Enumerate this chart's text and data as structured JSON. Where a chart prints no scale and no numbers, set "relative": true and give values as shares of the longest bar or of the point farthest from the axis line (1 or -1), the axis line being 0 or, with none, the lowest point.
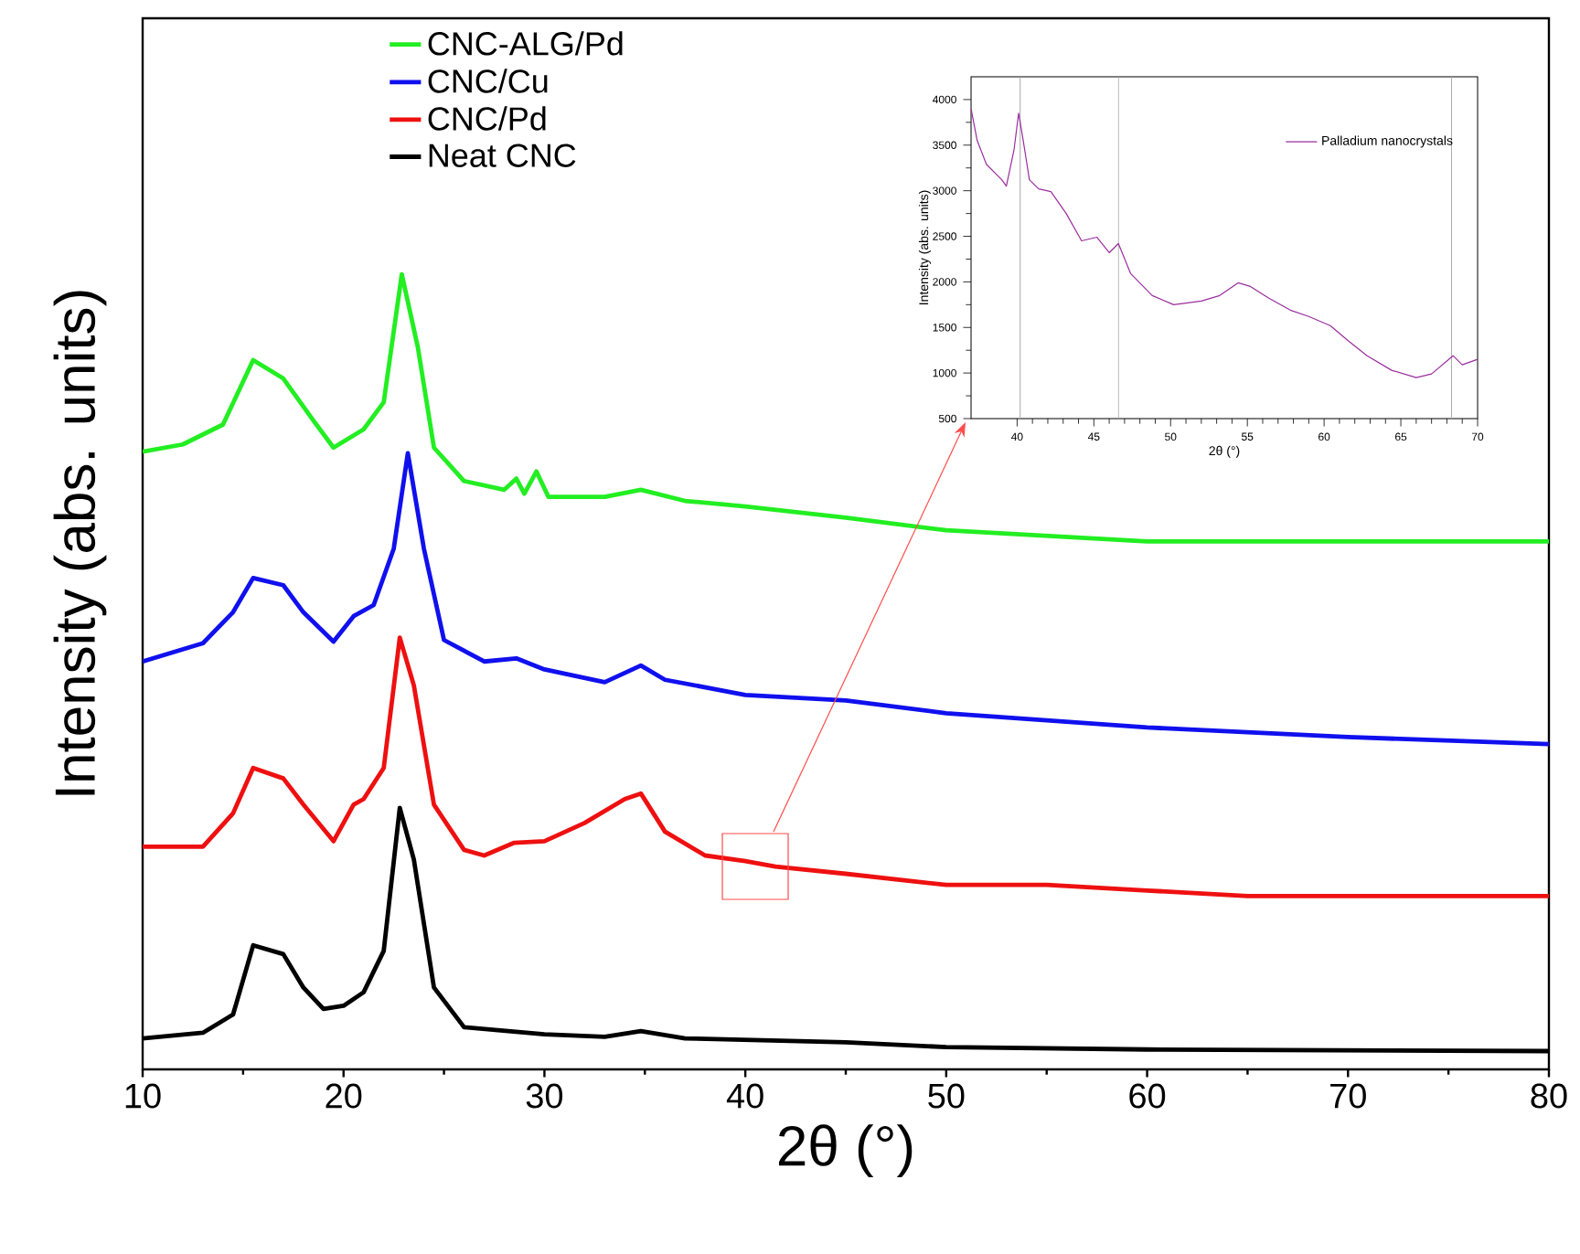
{
  "chart_data": [
    {
      "type": "line",
      "xlabel": "2θ (°)",
      "ylabel": "Intensity (abs. units)",
      "relative": true,
      "xlim": [
        10,
        80
      ],
      "xticks": [
        10,
        20,
        30,
        40,
        50,
        60,
        70,
        80
      ],
      "legend": "top left",
      "series": [
        {
          "name": "CNC-ALG/Pd",
          "color": "#22ee22",
          "x": [
            10,
            12,
            14,
            15.5,
            17,
            18.5,
            19.5,
            21,
            22,
            22.9,
            23.7,
            24.5,
            26,
            28,
            28.6,
            29,
            29.6,
            30.2,
            33,
            34.8,
            37,
            40,
            45,
            50,
            60,
            70,
            80
          ],
          "values": [
            0.777,
            0.786,
            0.811,
            0.892,
            0.869,
            0.816,
            0.782,
            0.805,
            0.839,
            1,
            0.908,
            0.782,
            0.74,
            0.729,
            0.743,
            0.724,
            0.752,
            0.72,
            0.72,
            0.729,
            0.715,
            0.708,
            0.694,
            0.678,
            0.664,
            0.664,
            0.664
          ]
        },
        {
          "name": "CNC/Cu",
          "color": "#1010ee",
          "x": [
            10,
            13,
            14.5,
            15.5,
            17,
            18,
            19.5,
            20.5,
            21.5,
            22.5,
            23.2,
            24,
            25,
            27,
            28.6,
            30,
            33,
            34.8,
            36,
            40,
            45,
            50,
            60,
            70,
            80
          ],
          "values": [
            0.513,
            0.536,
            0.575,
            0.618,
            0.609,
            0.575,
            0.538,
            0.57,
            0.584,
            0.655,
            0.775,
            0.655,
            0.54,
            0.513,
            0.517,
            0.503,
            0.487,
            0.508,
            0.49,
            0.471,
            0.464,
            0.448,
            0.43,
            0.418,
            0.409
          ]
        },
        {
          "name": "CNC/Pd",
          "color": "#ee1010",
          "x": [
            10,
            13,
            14.5,
            15.5,
            17,
            18,
            19.5,
            20.5,
            21,
            22,
            22.8,
            23.5,
            24.5,
            26,
            27,
            28.5,
            30,
            32,
            34,
            34.8,
            36,
            38,
            40,
            41.5,
            45,
            50,
            55,
            60,
            65,
            70,
            80
          ],
          "values": [
            0.28,
            0.28,
            0.322,
            0.379,
            0.366,
            0.333,
            0.287,
            0.333,
            0.34,
            0.379,
            0.543,
            0.483,
            0.333,
            0.276,
            0.269,
            0.285,
            0.287,
            0.31,
            0.34,
            0.347,
            0.299,
            0.269,
            0.262,
            0.255,
            0.246,
            0.232,
            0.232,
            0.225,
            0.218,
            0.218,
            0.218
          ]
        },
        {
          "name": "Neat CNC",
          "color": "#000000",
          "x": [
            10,
            13,
            14.5,
            15.5,
            17,
            18,
            19,
            20,
            21,
            22,
            22.8,
            23.5,
            24.5,
            26,
            30,
            33,
            34.8,
            37,
            45,
            50,
            60,
            80
          ],
          "values": [
            0.039,
            0.046,
            0.069,
            0.156,
            0.145,
            0.103,
            0.076,
            0.08,
            0.097,
            0.149,
            0.329,
            0.264,
            0.103,
            0.053,
            0.044,
            0.041,
            0.048,
            0.039,
            0.034,
            0.028,
            0.025,
            0.023
          ]
        }
      ]
    },
    {
      "type": "line",
      "xlabel": "2θ (°)",
      "ylabel": "Intensity (abs. units)",
      "xlim": [
        37,
        70
      ],
      "ylim": [
        500,
        4250
      ],
      "xticks": [
        40,
        45,
        50,
        55,
        60,
        65,
        70
      ],
      "yticks": [
        500,
        1000,
        1500,
        2000,
        2500,
        3000,
        3500,
        4000
      ],
      "legend": "top right",
      "ref_lines": [
        {
          "axis": "x",
          "value": 40.2,
          "color": "#aaaaaa"
        },
        {
          "axis": "x",
          "value": 46.6,
          "color": "#aaaaaa"
        },
        {
          "axis": "x",
          "value": 68.3,
          "color": "#aaaaaa"
        }
      ],
      "series": [
        {
          "name": "Palladium nanocrystals",
          "color": "#9a2e9e",
          "x": [
            37,
            37.4,
            38,
            39,
            39.3,
            39.8,
            40.1,
            40.4,
            40.8,
            41.4,
            42.2,
            43.2,
            44.2,
            45.2,
            46,
            46.6,
            47.4,
            48.8,
            50.2,
            52,
            53.2,
            54.4,
            55.2,
            56.4,
            57.8,
            59,
            60.4,
            61.6,
            62.8,
            64.4,
            66,
            67,
            68.4,
            69,
            70
          ],
          "values": [
            3900,
            3550,
            3290,
            3120,
            3050,
            3450,
            3850,
            3550,
            3120,
            3020,
            2990,
            2750,
            2450,
            2490,
            2320,
            2420,
            2090,
            1850,
            1750,
            1790,
            1850,
            1990,
            1950,
            1820,
            1690,
            1620,
            1520,
            1350,
            1190,
            1030,
            950,
            990,
            1190,
            1090,
            1150
          ]
        }
      ]
    }
  ]
}
